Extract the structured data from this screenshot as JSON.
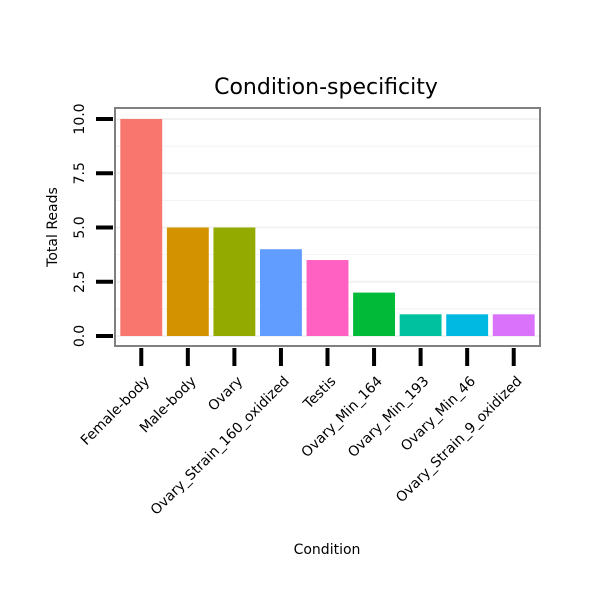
{
  "chart_data": {
    "type": "bar",
    "title": "Condition-specificity",
    "xlabel": "Condition",
    "ylabel": "Total Reads",
    "ylim": [
      0,
      10.4
    ],
    "yticks": [
      0,
      2.5,
      5,
      7.5,
      10
    ],
    "ytick_labels": [
      "0.0",
      "2.5",
      "5.0",
      "7.5",
      "10.0"
    ],
    "grid": true,
    "legend": "none",
    "categories": [
      "Female-body",
      "Male-body",
      "Ovary",
      "Ovary_Strain_160_oxidized",
      "Testis",
      "Ovary_Min_164",
      "Ovary_Min_193",
      "Ovary_Min_46",
      "Ovary_Strain_9_oxidized"
    ],
    "values": [
      10,
      5,
      5,
      4,
      3.5,
      2,
      1,
      1,
      1
    ],
    "colors": [
      "#F8766D",
      "#D39200",
      "#93AA00",
      "#619CFF",
      "#FF61C3",
      "#00BA38",
      "#00C19F",
      "#00B9E3",
      "#DB72FB"
    ]
  }
}
